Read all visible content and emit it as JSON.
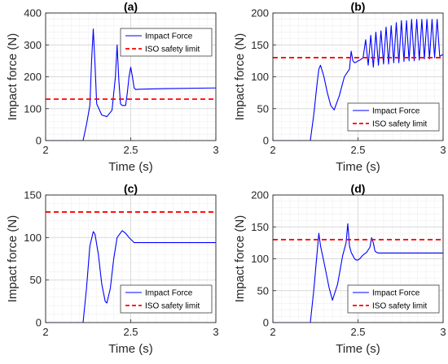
{
  "colors": {
    "impact": "#0000ff",
    "limit": "#ff0000",
    "grid_major": "#d9d9d9",
    "grid_minor": "#efefef",
    "axis": "#262626"
  },
  "chart_data": [
    {
      "type": "line",
      "title": "(a)",
      "xlabel": "Time (s)",
      "ylabel": "Impact force (N)",
      "xlim": [
        2,
        3
      ],
      "ylim": [
        0,
        400
      ],
      "xticks": [
        2,
        2.5,
        3
      ],
      "yticks": [
        0,
        100,
        200,
        300,
        400
      ],
      "grid": true,
      "legend_position": "top-right",
      "series": [
        {
          "name": "Impact Force",
          "style": "solid",
          "x": [
            2.0,
            2.22,
            2.24,
            2.26,
            2.27,
            2.28,
            2.29,
            2.3,
            2.33,
            2.36,
            2.39,
            2.41,
            2.42,
            2.43,
            2.44,
            2.45,
            2.47,
            2.48,
            2.49,
            2.5,
            2.51,
            2.52,
            2.53,
            2.55,
            2.7,
            3.0
          ],
          "y": [
            0,
            0,
            50,
            110,
            250,
            350,
            240,
            115,
            80,
            75,
            95,
            200,
            300,
            190,
            115,
            110,
            110,
            150,
            200,
            230,
            200,
            165,
            160,
            161,
            163,
            165
          ]
        },
        {
          "name": "ISO safety limit",
          "style": "dashed",
          "x": [
            2,
            3
          ],
          "y": [
            130,
            130
          ]
        }
      ]
    },
    {
      "type": "line",
      "title": "(b)",
      "xlabel": "Time (s)",
      "ylabel": "Impact force (N)",
      "xlim": [
        2,
        3
      ],
      "ylim": [
        0,
        200
      ],
      "xticks": [
        2,
        2.5,
        3
      ],
      "yticks": [
        0,
        50,
        100,
        150,
        200
      ],
      "grid": true,
      "legend_position": "bottom-right",
      "series": [
        {
          "name": "Impact Force",
          "style": "solid",
          "x": [
            2.0,
            2.22,
            2.24,
            2.26,
            2.27,
            2.28,
            2.3,
            2.32,
            2.34,
            2.36,
            2.39,
            2.42,
            2.45,
            2.46,
            2.47,
            2.48,
            2.49,
            2.5,
            2.51,
            2.52,
            2.53,
            2.545,
            2.56,
            2.575,
            2.59,
            2.605,
            2.62,
            2.635,
            2.65,
            2.665,
            2.68,
            2.695,
            2.71,
            2.725,
            2.74,
            2.755,
            2.77,
            2.785,
            2.8,
            2.815,
            2.83,
            2.845,
            2.86,
            2.875,
            2.89,
            2.905,
            2.92,
            2.935,
            2.95,
            2.965,
            2.98,
            3.0
          ],
          "y": [
            0,
            0,
            40,
            90,
            112,
            118,
            100,
            75,
            55,
            48,
            70,
            100,
            112,
            140,
            125,
            122,
            123,
            125,
            126,
            128,
            130,
            158,
            118,
            165,
            115,
            170,
            118,
            172,
            120,
            178,
            120,
            180,
            122,
            185,
            122,
            188,
            124,
            188,
            125,
            190,
            125,
            190,
            126,
            190,
            128,
            190,
            128,
            190,
            130,
            190,
            132,
            135
          ]
        },
        {
          "name": "ISO safety limit",
          "style": "dashed",
          "x": [
            2,
            3
          ],
          "y": [
            130,
            130
          ]
        }
      ]
    },
    {
      "type": "line",
      "title": "(c)",
      "xlabel": "Time (s)",
      "ylabel": "Impact force (N)",
      "xlim": [
        2,
        3
      ],
      "ylim": [
        0,
        150
      ],
      "xticks": [
        2,
        2.5,
        3
      ],
      "yticks": [
        0,
        50,
        100,
        150
      ],
      "grid": true,
      "legend_position": "bottom-right",
      "series": [
        {
          "name": "Impact Force",
          "style": "solid",
          "x": [
            2.0,
            2.22,
            2.24,
            2.26,
            2.28,
            2.29,
            2.31,
            2.33,
            2.35,
            2.36,
            2.38,
            2.4,
            2.42,
            2.45,
            2.47,
            2.49,
            2.51,
            2.52,
            2.53,
            2.6,
            3.0
          ],
          "y": [
            0,
            0,
            40,
            90,
            107,
            104,
            80,
            45,
            25,
            23,
            40,
            75,
            100,
            108,
            105,
            100,
            96,
            94,
            94,
            94,
            94
          ]
        },
        {
          "name": "ISO safety limit",
          "style": "dashed",
          "x": [
            2,
            3
          ],
          "y": [
            130,
            130
          ]
        }
      ]
    },
    {
      "type": "line",
      "title": "(d)",
      "xlabel": "Time (s)",
      "ylabel": "Impact force (N)",
      "xlim": [
        2,
        3
      ],
      "ylim": [
        0,
        200
      ],
      "xticks": [
        2,
        2.5,
        3
      ],
      "yticks": [
        0,
        50,
        100,
        150,
        200
      ],
      "grid": true,
      "legend_position": "bottom-right",
      "series": [
        {
          "name": "Impact Force",
          "style": "solid",
          "x": [
            2.0,
            2.22,
            2.24,
            2.25,
            2.26,
            2.27,
            2.28,
            2.3,
            2.33,
            2.35,
            2.38,
            2.41,
            2.43,
            2.44,
            2.45,
            2.46,
            2.47,
            2.48,
            2.49,
            2.5,
            2.51,
            2.53,
            2.55,
            2.57,
            2.58,
            2.59,
            2.6,
            2.61,
            2.62,
            2.7,
            3.0
          ],
          "y": [
            0,
            0,
            50,
            80,
            110,
            140,
            120,
            95,
            55,
            35,
            60,
            105,
            125,
            155,
            120,
            110,
            105,
            100,
            98,
            98,
            100,
            106,
            110,
            118,
            133,
            125,
            112,
            110,
            109,
            109,
            109
          ]
        },
        {
          "name": "ISO safety limit",
          "style": "dashed",
          "x": [
            2,
            3
          ],
          "y": [
            130,
            130
          ]
        }
      ]
    }
  ]
}
